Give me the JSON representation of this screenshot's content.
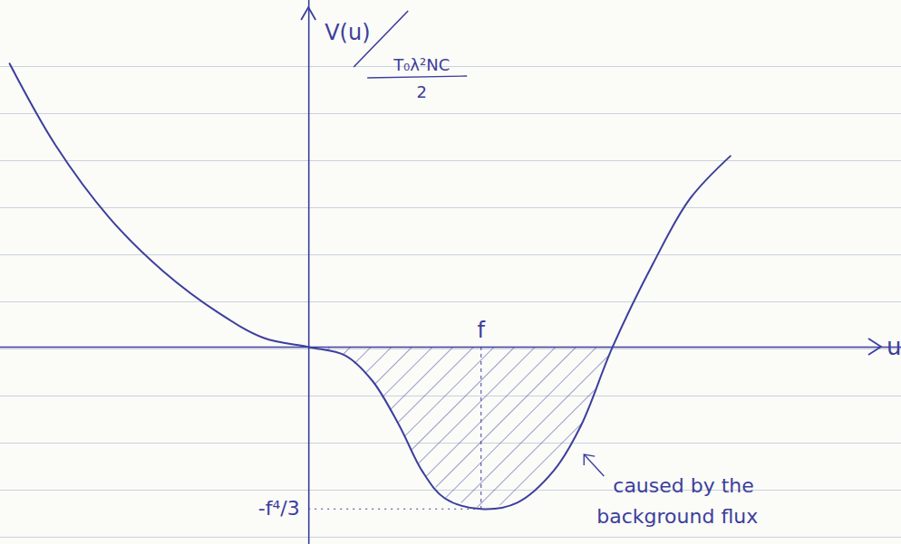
{
  "chart_data": {
    "type": "line",
    "y_label": [
      "V(u)",
      "T₀λ²NC",
      "2"
    ],
    "x_label": "u",
    "x": [
      -1.737,
      -1.47,
      -1.158,
      -0.842,
      -0.526,
      -0.263,
      0,
      0.21,
      0.368,
      0.526,
      0.658,
      0.789,
      1,
      1.21,
      1.42,
      1.579,
      1.763,
      2.0,
      2.21,
      2.447
    ],
    "values": [
      0.583,
      0.415,
      0.266,
      0.155,
      0.071,
      0.019,
      0,
      -0.017,
      -0.069,
      -0.162,
      -0.255,
      -0.311,
      -0.333,
      -0.32,
      -0.255,
      -0.162,
      0,
      0.173,
      0.304,
      0.393
    ],
    "color": "#3c3f9c",
    "xlim": [
      -1.79,
      3.44
    ],
    "ylim": [
      -0.406,
      0.713
    ],
    "xticks": [
      {
        "value": 1,
        "label": "f"
      }
    ],
    "yticks": [
      {
        "value": -0.333,
        "label": "-f⁴/3"
      }
    ],
    "annotation": [
      "caused by the",
      "background flux"
    ]
  }
}
